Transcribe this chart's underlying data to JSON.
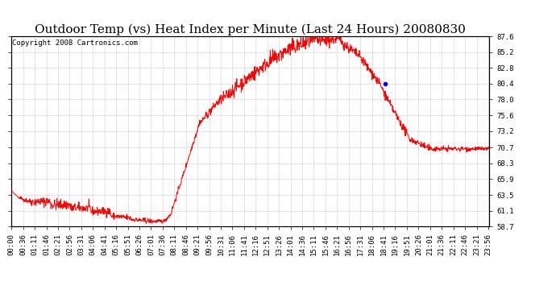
{
  "title": "Outdoor Temp (vs) Heat Index per Minute (Last 24 Hours) 20080830",
  "copyright": "Copyright 2008 Cartronics.com",
  "line_color": "#FF0000",
  "blue_dot_color": "#0000FF",
  "background_color": "#FFFFFF",
  "plot_bg_color": "#FFFFFF",
  "grid_color": "#AAAAAA",
  "y_ticks": [
    58.7,
    61.1,
    63.5,
    65.9,
    68.3,
    70.7,
    73.2,
    75.6,
    78.0,
    80.4,
    82.8,
    85.2,
    87.6
  ],
  "y_min": 58.7,
  "y_max": 87.6,
  "x_tick_labels": [
    "00:00",
    "00:36",
    "01:11",
    "01:46",
    "02:21",
    "02:56",
    "03:31",
    "04:06",
    "04:41",
    "05:16",
    "05:51",
    "06:26",
    "07:01",
    "07:36",
    "08:11",
    "08:46",
    "09:21",
    "09:56",
    "10:31",
    "11:06",
    "11:41",
    "12:16",
    "12:51",
    "13:26",
    "14:01",
    "14:36",
    "15:11",
    "15:46",
    "16:21",
    "16:56",
    "17:31",
    "18:06",
    "18:41",
    "19:16",
    "19:51",
    "20:26",
    "21:01",
    "21:36",
    "22:11",
    "22:46",
    "23:21",
    "23:56"
  ],
  "title_fontsize": 11,
  "tick_fontsize": 6.5,
  "copyright_fontsize": 6.5,
  "blue_dot_minute": 1126,
  "blue_dot_val": 80.4,
  "figwidth": 6.9,
  "figheight": 3.75,
  "dpi": 100
}
